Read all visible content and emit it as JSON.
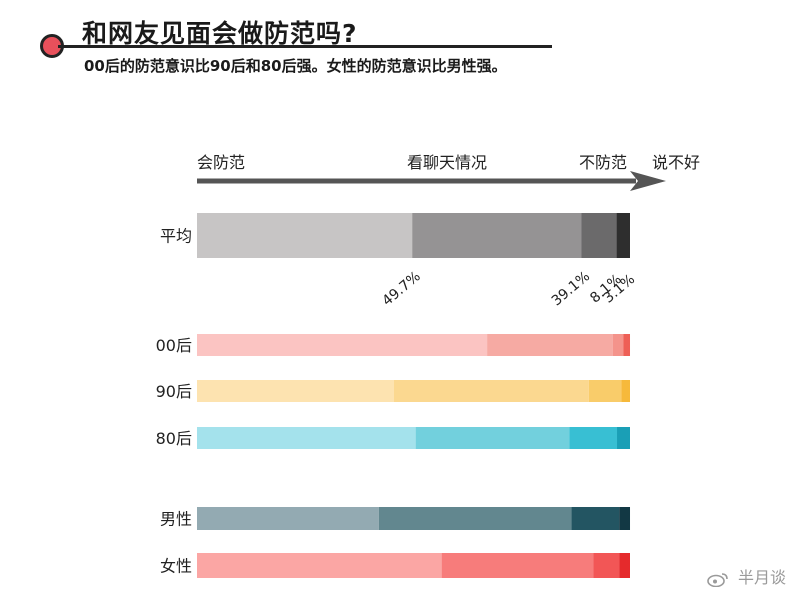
{
  "header": {
    "title": "和网友见面会做防范吗?",
    "subtitle": "00后的防范意识比90后和80后强。女性的防范意识比男性强。"
  },
  "scale": {
    "left": "会防范",
    "middle": "看聊天情况",
    "right_a": "不防范",
    "right_b": "说不好"
  },
  "watermark": "半月谈",
  "colors": {
    "avg": [
      "#c7c5c5",
      "#959394",
      "#6b6a6b",
      "#2e2e2e"
    ],
    "00后": [
      "#fbc4c2",
      "#f6aaa3",
      "#f4938b",
      "#ee5f56"
    ],
    "90后": [
      "#fde3b0",
      "#fbd890",
      "#f9cc6a",
      "#f6b93b"
    ],
    "80后": [
      "#a4e2ec",
      "#72d0dd",
      "#38bfd3",
      "#1a9fb6"
    ],
    "男性": [
      "#93aab2",
      "#62878f",
      "#235562",
      "#123844"
    ],
    "女性": [
      "#fba6a4",
      "#f77c7b",
      "#f25656",
      "#e52a2c"
    ]
  },
  "chart_data": {
    "type": "bar",
    "stacked": true,
    "orientation": "horizontal",
    "categories": [
      "平均",
      "00后",
      "90后",
      "80后",
      "男性",
      "女性"
    ],
    "series": [
      {
        "name": "会防范",
        "values": [
          49.7,
          67.0,
          45.5,
          50.5,
          42.0,
          56.5
        ]
      },
      {
        "name": "看聊天情况",
        "values": [
          39.1,
          29.0,
          45.0,
          35.5,
          44.5,
          35.0
        ]
      },
      {
        "name": "不防范",
        "values": [
          8.1,
          2.5,
          7.5,
          11.0,
          11.0,
          6.0
        ]
      },
      {
        "name": "说不好",
        "values": [
          3.1,
          1.5,
          2.0,
          3.0,
          2.5,
          2.5
        ]
      }
    ],
    "value_labels": [
      "49.7%",
      "39.1%",
      "8.1%",
      "3.1%"
    ],
    "xlim": [
      0,
      100
    ]
  }
}
